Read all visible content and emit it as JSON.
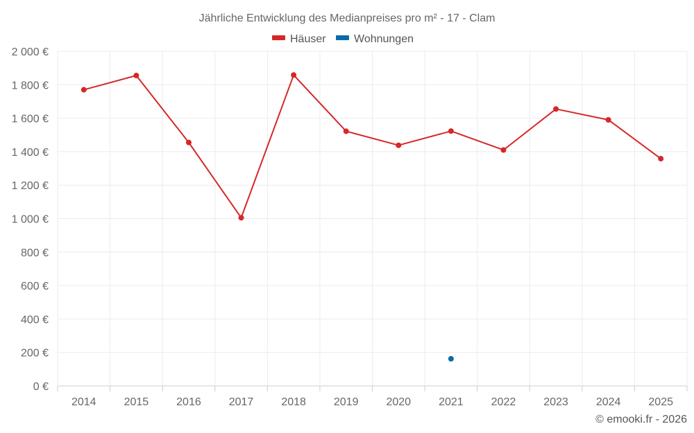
{
  "chart_data": {
    "type": "line",
    "title": "Jährliche Entwicklung des Medianpreises pro m² - 17 - Clam",
    "categories": [
      "2014",
      "2015",
      "2016",
      "2017",
      "2018",
      "2019",
      "2020",
      "2021",
      "2022",
      "2023",
      "2024",
      "2025"
    ],
    "series": [
      {
        "name": "Häuser",
        "color": "#d62728",
        "values": [
          1770,
          1855,
          1455,
          1005,
          1858,
          1522,
          1438,
          1523,
          1410,
          1655,
          1590,
          1358
        ]
      },
      {
        "name": "Wohnungen",
        "color": "#0b6aa8",
        "values": [
          null,
          null,
          null,
          null,
          null,
          null,
          null,
          162,
          null,
          null,
          null,
          null
        ]
      }
    ],
    "yticks": [
      0,
      200,
      400,
      600,
      800,
      1000,
      1200,
      1400,
      1600,
      1800,
      2000
    ],
    "ytick_labels": [
      "0 €",
      "200 €",
      "400 €",
      "600 €",
      "800 €",
      "1 000 €",
      "1 200 €",
      "1 400 €",
      "1 600 €",
      "1 800 €",
      "2 000 €"
    ],
    "ylim": [
      0,
      2000
    ],
    "xlabel": "",
    "ylabel": "",
    "legend_position": "top-center",
    "grid": true,
    "credit": "© emooki.fr - 2026"
  }
}
